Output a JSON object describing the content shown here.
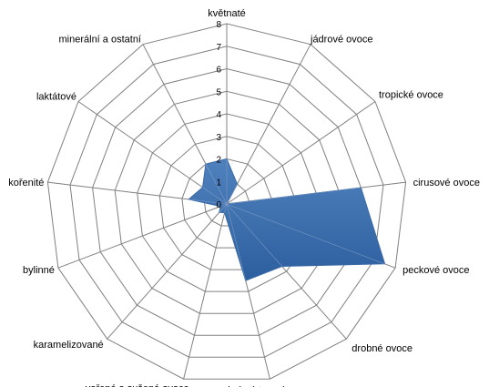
{
  "chart_data": {
    "type": "radar",
    "categories": [
      "květnaté",
      "jádrové ovoce",
      "tropické ovoce",
      "cirusové ovoce",
      "peckové ovoce",
      "drobné ovoce",
      "drobné tmavé ovoce",
      "vařené a sušené ovoce",
      "karamelizované",
      "bylinné",
      "kořenité",
      "laktátové",
      "minerální a ostatní"
    ],
    "series": [
      {
        "values": [
          2,
          1,
          0,
          6,
          7.5,
          3.7,
          3.5,
          0.4,
          0.5,
          0.3,
          1.7,
          1.3,
          2
        ]
      }
    ],
    "rlim": [
      0,
      8
    ],
    "ticks": [
      "0",
      "1",
      "2",
      "3",
      "4",
      "5",
      "6",
      "7",
      "8"
    ],
    "grid": true,
    "colors": {
      "fill": "#4f81bd",
      "fill_dark": "#2d5f9f",
      "stroke": "#3b6aa8",
      "grid": "#808080"
    }
  }
}
